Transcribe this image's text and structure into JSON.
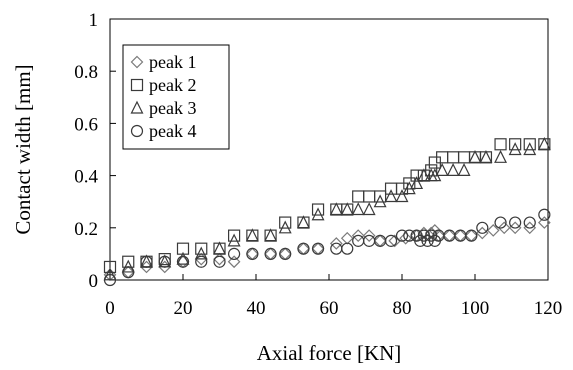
{
  "chart_data": {
    "type": "scatter",
    "xlabel": "Axial force [KN]",
    "ylabel": "Contact width [mm]",
    "xlim": [
      0,
      120
    ],
    "ylim": [
      0,
      1
    ],
    "xticks": [
      "0",
      "20",
      "40",
      "60",
      "80",
      "100",
      "120"
    ],
    "yticks": [
      "0",
      "0.2",
      "0.4",
      "0.6",
      "0.8",
      "1"
    ],
    "grid": false,
    "legend_position": "top-left",
    "series": [
      {
        "name": "peak 1",
        "marker": "diamond",
        "color": "#7a7a7a",
        "points": [
          [
            0,
            0.02
          ],
          [
            5,
            0.03
          ],
          [
            10,
            0.05
          ],
          [
            15,
            0.05
          ],
          [
            20,
            0.07
          ],
          [
            25,
            0.08
          ],
          [
            30,
            0.08
          ],
          [
            34,
            0.07
          ],
          [
            39,
            0.1
          ],
          [
            44,
            0.1
          ],
          [
            48,
            0.1
          ],
          [
            53,
            0.12
          ],
          [
            57,
            0.12
          ],
          [
            62,
            0.14
          ],
          [
            65,
            0.16
          ],
          [
            68,
            0.17
          ],
          [
            71,
            0.17
          ],
          [
            74,
            0.15
          ],
          [
            78,
            0.15
          ],
          [
            81,
            0.16
          ],
          [
            84,
            0.17
          ],
          [
            86,
            0.18
          ],
          [
            88,
            0.18
          ],
          [
            89,
            0.19
          ],
          [
            90,
            0.17
          ],
          [
            93,
            0.17
          ],
          [
            96,
            0.17
          ],
          [
            99,
            0.17
          ],
          [
            102,
            0.18
          ],
          [
            105,
            0.19
          ],
          [
            108,
            0.2
          ],
          [
            111,
            0.2
          ],
          [
            115,
            0.2
          ],
          [
            119,
            0.22
          ]
        ]
      },
      {
        "name": "peak 2",
        "marker": "square",
        "color": "#3a3a3a",
        "points": [
          [
            0,
            0.05
          ],
          [
            5,
            0.07
          ],
          [
            10,
            0.07
          ],
          [
            15,
            0.08
          ],
          [
            20,
            0.12
          ],
          [
            25,
            0.12
          ],
          [
            30,
            0.12
          ],
          [
            34,
            0.17
          ],
          [
            39,
            0.17
          ],
          [
            44,
            0.17
          ],
          [
            48,
            0.22
          ],
          [
            53,
            0.22
          ],
          [
            57,
            0.27
          ],
          [
            62,
            0.27
          ],
          [
            65,
            0.27
          ],
          [
            68,
            0.32
          ],
          [
            71,
            0.32
          ],
          [
            74,
            0.32
          ],
          [
            77,
            0.35
          ],
          [
            80,
            0.35
          ],
          [
            82,
            0.37
          ],
          [
            84,
            0.4
          ],
          [
            86,
            0.4
          ],
          [
            88,
            0.42
          ],
          [
            89,
            0.45
          ],
          [
            91,
            0.47
          ],
          [
            94,
            0.47
          ],
          [
            97,
            0.47
          ],
          [
            100,
            0.47
          ],
          [
            103,
            0.47
          ],
          [
            107,
            0.52
          ],
          [
            111,
            0.52
          ],
          [
            115,
            0.52
          ],
          [
            119,
            0.52
          ]
        ]
      },
      {
        "name": "peak 3",
        "marker": "triangle",
        "color": "#3a3a3a",
        "points": [
          [
            0,
            0.02
          ],
          [
            5,
            0.05
          ],
          [
            10,
            0.07
          ],
          [
            15,
            0.07
          ],
          [
            20,
            0.08
          ],
          [
            25,
            0.1
          ],
          [
            30,
            0.12
          ],
          [
            34,
            0.15
          ],
          [
            39,
            0.17
          ],
          [
            44,
            0.17
          ],
          [
            48,
            0.2
          ],
          [
            53,
            0.22
          ],
          [
            57,
            0.25
          ],
          [
            62,
            0.27
          ],
          [
            65,
            0.27
          ],
          [
            68,
            0.27
          ],
          [
            71,
            0.27
          ],
          [
            74,
            0.3
          ],
          [
            77,
            0.32
          ],
          [
            80,
            0.32
          ],
          [
            82,
            0.35
          ],
          [
            84,
            0.37
          ],
          [
            86,
            0.4
          ],
          [
            88,
            0.4
          ],
          [
            89,
            0.4
          ],
          [
            91,
            0.42
          ],
          [
            94,
            0.42
          ],
          [
            97,
            0.42
          ],
          [
            100,
            0.47
          ],
          [
            103,
            0.47
          ],
          [
            107,
            0.47
          ],
          [
            111,
            0.5
          ],
          [
            115,
            0.5
          ],
          [
            119,
            0.52
          ]
        ]
      },
      {
        "name": "peak 4",
        "marker": "circle",
        "color": "#3a3a3a",
        "points": [
          [
            0,
            0.0
          ],
          [
            5,
            0.03
          ],
          [
            10,
            0.07
          ],
          [
            15,
            0.07
          ],
          [
            20,
            0.07
          ],
          [
            25,
            0.07
          ],
          [
            30,
            0.07
          ],
          [
            34,
            0.1
          ],
          [
            39,
            0.1
          ],
          [
            44,
            0.1
          ],
          [
            48,
            0.1
          ],
          [
            53,
            0.12
          ],
          [
            57,
            0.12
          ],
          [
            62,
            0.12
          ],
          [
            65,
            0.12
          ],
          [
            68,
            0.15
          ],
          [
            71,
            0.15
          ],
          [
            74,
            0.15
          ],
          [
            77,
            0.15
          ],
          [
            80,
            0.17
          ],
          [
            82,
            0.17
          ],
          [
            84,
            0.17
          ],
          [
            85,
            0.15
          ],
          [
            86,
            0.17
          ],
          [
            87,
            0.15
          ],
          [
            88,
            0.17
          ],
          [
            89,
            0.15
          ],
          [
            90,
            0.17
          ],
          [
            93,
            0.17
          ],
          [
            96,
            0.17
          ],
          [
            99,
            0.17
          ],
          [
            102,
            0.2
          ],
          [
            107,
            0.22
          ],
          [
            111,
            0.22
          ],
          [
            115,
            0.22
          ],
          [
            119,
            0.25
          ]
        ]
      }
    ]
  }
}
